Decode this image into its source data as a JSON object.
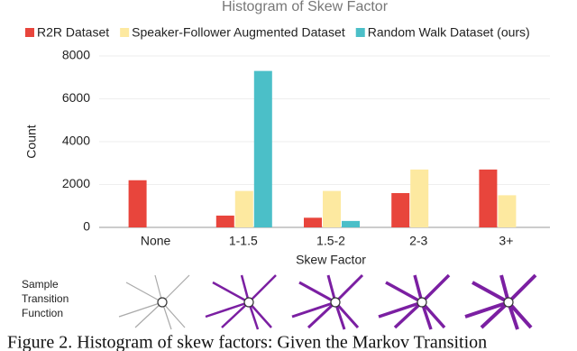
{
  "chart_data": {
    "type": "bar",
    "title": "Histogram of Skew Factor",
    "categories": [
      "None",
      "1-1.5",
      "1.5-2",
      "2-3",
      "3+"
    ],
    "series": [
      {
        "name": "R2R Dataset",
        "color": "#e8453c",
        "values": [
          2200,
          550,
          450,
          1600,
          2700
        ]
      },
      {
        "name": "Speaker-Follower Augmented Dataset",
        "color": "#fde9a0",
        "values": [
          0,
          1700,
          1700,
          2700,
          1500
        ]
      },
      {
        "name": "Random Walk Dataset (ours)",
        "color": "#4bbfc8",
        "values": [
          0,
          7300,
          300,
          0,
          0
        ]
      }
    ],
    "x_label": "Skew Factor",
    "y_label": "Count",
    "ylim": [
      0,
      8000
    ],
    "yticks": [
      0,
      2000,
      4000,
      6000,
      8000
    ],
    "grid": true,
    "legend": "top",
    "row_label": [
      "Sample",
      "Transition",
      "Function"
    ]
  },
  "caption": "Figure 2. Histogram of skew factors: Given the Markov Transition"
}
